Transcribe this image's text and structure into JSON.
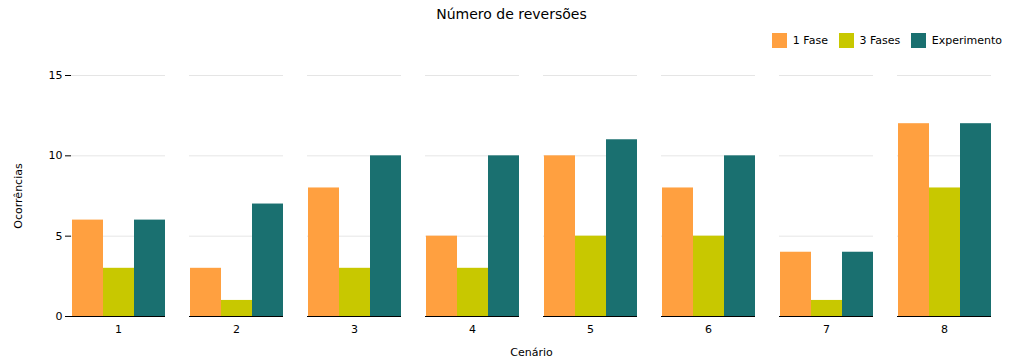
{
  "chart_data": {
    "type": "bar",
    "title": "Número de reversões",
    "xlabel": "Cenário",
    "ylabel": "Ocorrências",
    "categories": [
      1,
      2,
      3,
      4,
      5,
      6,
      7,
      8
    ],
    "series": [
      {
        "name": "1 Fase",
        "color": "#FFA040",
        "values": [
          6,
          3,
          8,
          5,
          10,
          8,
          4,
          12
        ]
      },
      {
        "name": "3 Fases",
        "color": "#C8C800",
        "values": [
          3,
          1,
          3,
          3,
          5,
          5,
          1,
          8
        ]
      },
      {
        "name": "Experimento",
        "color": "#1A7070",
        "values": [
          6,
          7,
          10,
          10,
          11,
          10,
          4,
          12
        ]
      }
    ],
    "ylim": [
      0,
      15
    ],
    "yticks": [
      0,
      5,
      10,
      15
    ],
    "grid": true,
    "legend": "upper right"
  }
}
